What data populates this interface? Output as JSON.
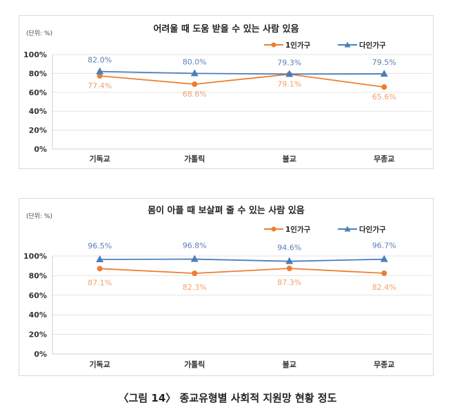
{
  "caption": "〈그림 14〉 종교유형별 사회적 지원망 현황 정도",
  "colors": {
    "single": "#ED7D31",
    "multi": "#4A7EBB",
    "single_label": "#F0A070",
    "multi_label": "#5B7FB5",
    "grid": "#e3e3e3"
  },
  "chart_data": [
    {
      "type": "line",
      "title": "어려울 때 도움 받을 수 있는 사람 있음",
      "unit_label": "(단위: %)",
      "categories": [
        "기독교",
        "가톨릭",
        "불교",
        "무종교"
      ],
      "yticks": [
        "0%",
        "20%",
        "40%",
        "60%",
        "80%",
        "100%"
      ],
      "ylim": [
        0,
        100
      ],
      "grid": true,
      "legend": "top-right",
      "series": [
        {
          "name": "1인가구",
          "marker": "circle",
          "values": [
            77.4,
            68.6,
            79.1,
            65.6
          ],
          "labels": [
            "77.4%",
            "68.6%",
            "79.1%",
            "65.6%"
          ]
        },
        {
          "name": "다인가구",
          "marker": "triangle",
          "values": [
            82.0,
            80.0,
            79.3,
            79.5
          ],
          "labels": [
            "82.0%",
            "80.0%",
            "79.3%",
            "79.5%"
          ]
        }
      ]
    },
    {
      "type": "line",
      "title": "몸이 아플 때 보살펴 줄 수 있는 사람 있음",
      "unit_label": "(단위: %)",
      "categories": [
        "기독교",
        "가톨릭",
        "불교",
        "무종교"
      ],
      "yticks": [
        "0%",
        "20%",
        "40%",
        "60%",
        "80%",
        "100%"
      ],
      "ylim": [
        0,
        100
      ],
      "grid": true,
      "legend": "top-right",
      "series": [
        {
          "name": "1인가구",
          "marker": "circle",
          "values": [
            87.1,
            82.3,
            87.3,
            82.4
          ],
          "labels": [
            "87.1%",
            "82.3%",
            "87.3%",
            "82.4%"
          ]
        },
        {
          "name": "다인가구",
          "marker": "triangle",
          "values": [
            96.5,
            96.8,
            94.6,
            96.7
          ],
          "labels": [
            "96.5%",
            "96.8%",
            "94.6%",
            "96.7%"
          ]
        }
      ]
    }
  ]
}
